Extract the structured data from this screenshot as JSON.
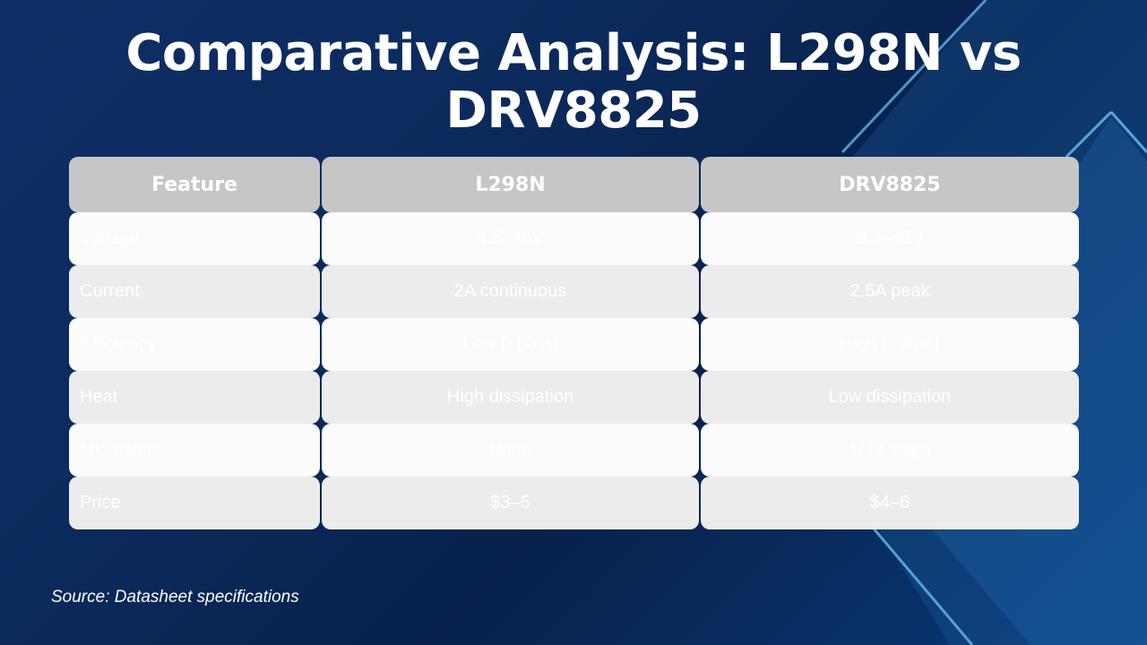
{
  "title": {
    "line1": "Comparative Analysis: L298N vs",
    "line2": "DRV8825"
  },
  "table": {
    "headers": [
      "Feature",
      "L298N",
      "DRV8825"
    ],
    "rows": [
      [
        "Voltage",
        "4.5–46V",
        "8.2–45V"
      ],
      [
        "Current",
        "2A continuous",
        "2.5A peak"
      ],
      [
        "Efficiency",
        "Low (~60%)",
        "High (~90%)"
      ],
      [
        "Heat",
        "High dissipation",
        "Low dissipation"
      ],
      [
        "Microstep",
        "None",
        "1/32 steps"
      ],
      [
        "Price",
        "$3–5",
        "$4–6"
      ]
    ]
  },
  "source": "Source: Datasheet specifications",
  "colors": {
    "background": "#0b2a5c",
    "header_cell": "#c6c6c6",
    "row_light": "#fbfbfb",
    "row_dark": "#ececec",
    "accent_lines": "#5fb3e8"
  }
}
